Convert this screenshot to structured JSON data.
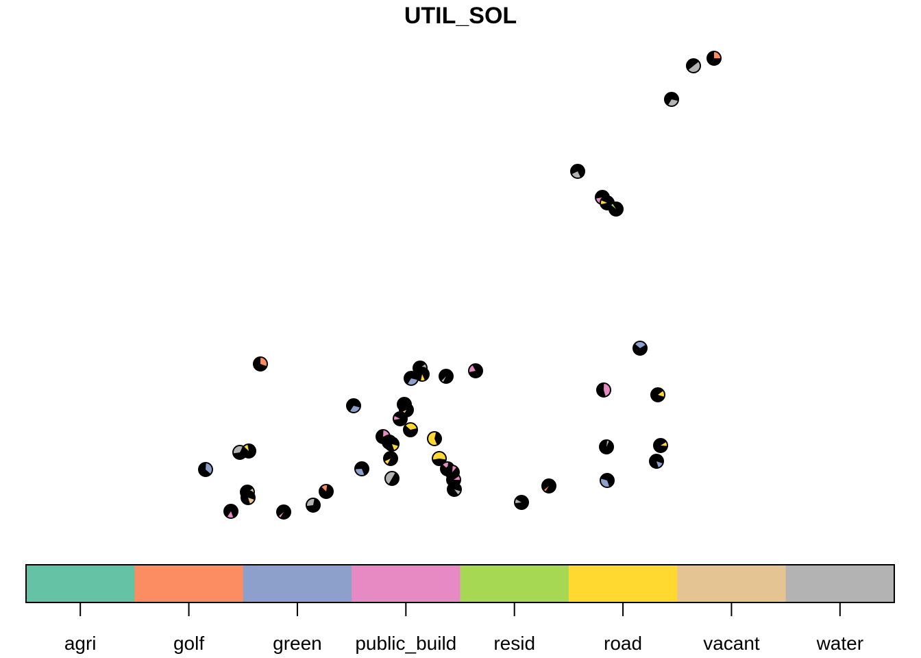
{
  "chart_data": {
    "type": "scatter",
    "title": "UTIL_SOL",
    "xlabel": "",
    "ylabel": "",
    "legend": {
      "placement": "bottom",
      "categories": [
        "agri",
        "golf",
        "green",
        "public_build",
        "resid",
        "road",
        "vacant",
        "water"
      ],
      "colors": [
        "#66C2A5",
        "#FC8D62",
        "#8DA0CB",
        "#E78AC3",
        "#A6D854",
        "#FFD92F",
        "#E5C494",
        "#B3B3B3"
      ]
    },
    "series": [
      {
        "name": "",
        "points": [
          [
            1042,
            85,
            "golf",
            0.25
          ],
          [
            1012,
            96,
            "water",
            0.5
          ],
          [
            980,
            145,
            "water",
            0.3
          ],
          [
            843,
            250,
            "water",
            0.25
          ],
          [
            879,
            288,
            "public_build",
            0.15
          ],
          [
            886,
            296,
            "road",
            0.1
          ],
          [
            899,
            305,
            "resid",
            0.05
          ],
          [
            380,
            531,
            "golf",
            0.3
          ],
          [
            613,
            537,
            "water",
            0.2
          ],
          [
            600,
            552,
            "green",
            0.3
          ],
          [
            616,
            546,
            "road",
            0.1
          ],
          [
            651,
            549,
            "water",
            0.05
          ],
          [
            694,
            541,
            "public_build",
            0.2
          ],
          [
            934,
            508,
            "green",
            0.3
          ],
          [
            881,
            569,
            "public_build",
            0.45
          ],
          [
            960,
            576,
            "road",
            0.15
          ],
          [
            516,
            592,
            "green",
            0.3
          ],
          [
            590,
            590,
            "road",
            0.1
          ],
          [
            593,
            598,
            "vacant",
            0.1
          ],
          [
            584,
            611,
            "public_build",
            0.1
          ],
          [
            599,
            627,
            "road",
            0.35
          ],
          [
            559,
            637,
            "public_build",
            0.2
          ],
          [
            568,
            645,
            "public_build",
            0.15
          ],
          [
            572,
            648,
            "road",
            0.15
          ],
          [
            634,
            640,
            "road",
            0.6
          ],
          [
            570,
            669,
            "road",
            0.1
          ],
          [
            641,
            669,
            "road",
            0.55
          ],
          [
            653,
            684,
            "public_build",
            0.15
          ],
          [
            660,
            689,
            "public_build",
            0.1
          ],
          [
            662,
            700,
            "public_build",
            0.1
          ],
          [
            663,
            714,
            "water",
            0.1
          ],
          [
            528,
            684,
            "green",
            0.3
          ],
          [
            572,
            698,
            "water",
            0.5
          ],
          [
            350,
            660,
            "water",
            0.35
          ],
          [
            363,
            658,
            "road",
            0.1
          ],
          [
            300,
            685,
            "green",
            0.35
          ],
          [
            361,
            718,
            "vacant",
            0.2
          ],
          [
            362,
            726,
            "vacant",
            0.15
          ],
          [
            337,
            746,
            "public_build",
            0.15
          ],
          [
            414,
            747,
            "public_build",
            0.05
          ],
          [
            457,
            737,
            "water",
            0.3
          ],
          [
            476,
            717,
            "golf",
            0.15
          ],
          [
            885,
            652,
            "water",
            0.05
          ],
          [
            964,
            650,
            "road",
            0.1
          ],
          [
            958,
            673,
            "green",
            0.15
          ],
          [
            886,
            701,
            "green",
            0.35
          ],
          [
            801,
            709,
            "golf",
            0.05
          ],
          [
            761,
            733,
            "water",
            0.1
          ]
        ]
      }
    ]
  }
}
